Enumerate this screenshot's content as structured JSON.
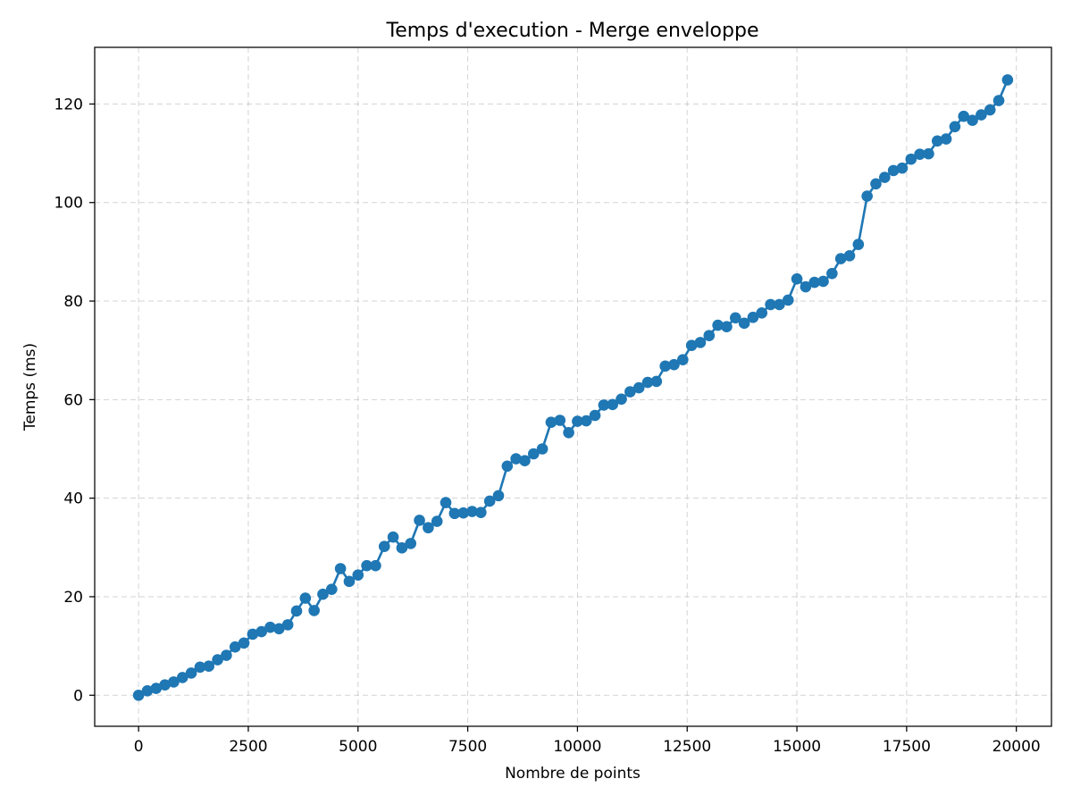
{
  "chart_data": {
    "type": "line",
    "title": "Temps d'execution - Merge enveloppe",
    "xlabel": "Nombre de points",
    "ylabel": "Temps (ms)",
    "xlim": [
      -1000,
      20800
    ],
    "ylim": [
      -6.3,
      131.5
    ],
    "xticks": [
      0,
      2500,
      5000,
      7500,
      10000,
      12500,
      15000,
      17500,
      20000
    ],
    "yticks": [
      0,
      20,
      40,
      60,
      80,
      100,
      120
    ],
    "grid": true,
    "marker": "circle",
    "color": "#1f77b4",
    "series": [
      {
        "x": [
          0,
          200,
          400,
          600,
          800,
          1000,
          1200,
          1400,
          1600,
          1800,
          2000,
          2200,
          2400,
          2600,
          2800,
          3000,
          3200,
          3400,
          3600,
          3800,
          4000,
          4200,
          4400,
          4600,
          4800,
          5000,
          5200,
          5400,
          5600,
          5800,
          6000,
          6200,
          6400,
          6600,
          6800,
          7000,
          7200,
          7400,
          7600,
          7800,
          8000,
          8200,
          8400,
          8600,
          8800,
          9000,
          9200,
          9400,
          9600,
          9800,
          10000,
          10200,
          10400,
          10600,
          10800,
          11000,
          11200,
          11400,
          11600,
          11800,
          12000,
          12200,
          12400,
          12600,
          12800,
          13000,
          13200,
          13400,
          13600,
          13800,
          14000,
          14200,
          14400,
          14600,
          14800,
          15000,
          15200,
          15400,
          15600,
          15800,
          16000,
          16200,
          16400,
          16600,
          16800,
          17000,
          17200,
          17400,
          17600,
          17800,
          18000,
          18200,
          18400,
          18600,
          18800,
          19000,
          19200,
          19400,
          19600,
          19800
        ],
        "values": [
          0.0,
          0.9,
          1.4,
          2.1,
          2.7,
          3.6,
          4.5,
          5.7,
          5.9,
          7.2,
          8.1,
          9.8,
          10.6,
          12.4,
          12.9,
          13.8,
          13.5,
          14.3,
          17.1,
          19.7,
          17.2,
          20.5,
          21.5,
          25.7,
          23.1,
          24.4,
          26.3,
          26.3,
          30.2,
          32.1,
          29.9,
          30.8,
          35.5,
          34.0,
          35.3,
          39.1,
          36.9,
          37.0,
          37.3,
          37.1,
          39.4,
          40.5,
          46.5,
          48.0,
          47.6,
          49.0,
          50.0,
          55.4,
          55.8,
          53.3,
          55.6,
          55.7,
          56.8,
          58.9,
          59.0,
          60.1,
          61.6,
          62.4,
          63.5,
          63.7,
          66.8,
          67.1,
          68.1,
          71.0,
          71.6,
          73.0,
          75.1,
          74.8,
          76.6,
          75.5,
          76.7,
          77.6,
          79.3,
          79.3,
          80.2,
          84.5,
          82.9,
          83.8,
          84.0,
          85.6,
          88.6,
          89.2,
          91.5,
          101.3,
          103.8,
          105.1,
          106.5,
          107.0,
          108.8,
          109.8,
          109.9,
          112.5,
          112.9,
          115.4,
          117.5,
          116.7,
          117.8,
          118.8,
          120.7,
          124.9
        ]
      }
    ]
  }
}
